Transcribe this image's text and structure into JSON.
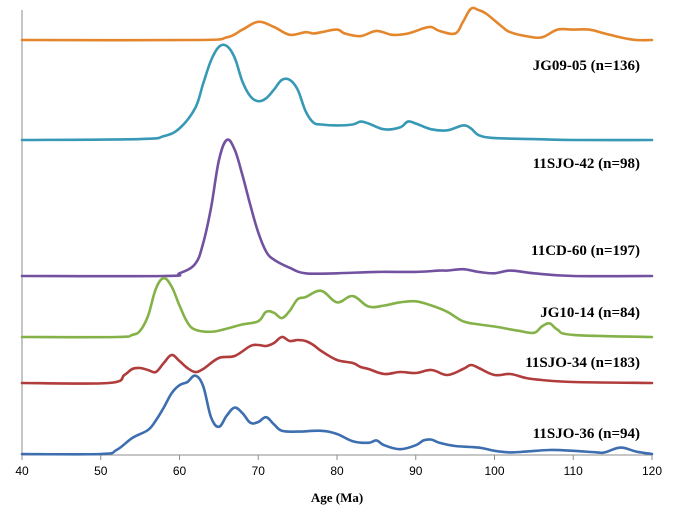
{
  "chart_data": {
    "type": "line",
    "title": "",
    "xlabel": "Age (Ma)",
    "ylabel": "",
    "xlim": [
      40,
      120
    ],
    "xticks": [
      40,
      50,
      60,
      70,
      80,
      90,
      100,
      110,
      120
    ],
    "grid": false,
    "legend": "none",
    "note": "Stacked probability density curves; each series offset vertically; y-axis unlabeled",
    "series": [
      {
        "name": "JG09-05 (n=136)",
        "color": "#E4862C",
        "baseline": 0,
        "x": [
          40,
          62,
          66,
          68,
          70,
          72,
          74,
          76,
          77,
          78,
          80,
          81,
          83,
          85,
          87,
          89,
          91,
          92,
          93,
          95,
          96,
          97,
          98,
          99,
          101,
          102,
          104,
          106,
          108,
          110,
          112,
          114,
          116,
          118,
          120
        ],
        "y": [
          0,
          0,
          0.02,
          0.08,
          0.14,
          0.1,
          0.04,
          0.06,
          0.05,
          0.06,
          0.08,
          0.05,
          0.03,
          0.07,
          0.04,
          0.05,
          0.09,
          0.1,
          0.07,
          0.05,
          0.14,
          0.24,
          0.23,
          0.2,
          0.1,
          0.06,
          0.03,
          0.02,
          0.08,
          0.08,
          0.08,
          0.05,
          0.02,
          0,
          0
        ]
      },
      {
        "name": "11SJO-42 (n=98)",
        "color": "#3799B5",
        "baseline": 0,
        "x": [
          40,
          55,
          58,
          60,
          62,
          63,
          64,
          65,
          66,
          67,
          68,
          69,
          70,
          71,
          72,
          73,
          74,
          75,
          76,
          77,
          78,
          80,
          82,
          83,
          84,
          86,
          88,
          89,
          90,
          92,
          94,
          96,
          97,
          98,
          100,
          105,
          110,
          120
        ],
        "y": [
          0,
          0.01,
          0.04,
          0.12,
          0.33,
          0.58,
          0.82,
          0.96,
          0.97,
          0.85,
          0.6,
          0.45,
          0.4,
          0.43,
          0.52,
          0.62,
          0.62,
          0.52,
          0.3,
          0.18,
          0.16,
          0.15,
          0.16,
          0.19,
          0.17,
          0.11,
          0.13,
          0.19,
          0.17,
          0.11,
          0.1,
          0.15,
          0.12,
          0.05,
          0.02,
          0.01,
          0,
          0
        ]
      },
      {
        "name": "11CD-60 (n=197)",
        "color": "#7252A0",
        "baseline": 0,
        "x": [
          40,
          58,
          60,
          62,
          63,
          64,
          65,
          66,
          67,
          68,
          69,
          70,
          71,
          72,
          74,
          76,
          80,
          85,
          90,
          93,
          94,
          96,
          98,
          100,
          102,
          105,
          110,
          120
        ],
        "y": [
          0,
          0,
          0.02,
          0.09,
          0.24,
          0.5,
          0.85,
          1.0,
          0.93,
          0.74,
          0.52,
          0.32,
          0.18,
          0.12,
          0.06,
          0.02,
          0.02,
          0.03,
          0.03,
          0.04,
          0.04,
          0.05,
          0.03,
          0.02,
          0.04,
          0.02,
          0,
          0
        ]
      },
      {
        "name": "JG10-14 (n=84)",
        "color": "#84B249",
        "baseline": 0,
        "x": [
          40,
          52,
          54,
          55,
          56,
          57,
          58,
          59,
          60,
          61,
          62,
          64,
          66,
          68,
          70,
          71,
          72,
          73,
          74,
          75,
          76,
          78,
          80,
          82,
          84,
          86,
          88,
          90,
          92,
          94,
          96,
          98,
          100,
          103,
          105,
          106,
          107,
          108,
          110,
          120
        ],
        "y": [
          0,
          0,
          0.02,
          0.06,
          0.2,
          0.46,
          0.56,
          0.48,
          0.3,
          0.14,
          0.07,
          0.05,
          0.08,
          0.12,
          0.15,
          0.24,
          0.23,
          0.18,
          0.25,
          0.36,
          0.38,
          0.44,
          0.33,
          0.39,
          0.29,
          0.3,
          0.33,
          0.34,
          0.3,
          0.24,
          0.15,
          0.12,
          0.1,
          0.06,
          0.04,
          0.1,
          0.13,
          0.07,
          0.02,
          0
        ]
      },
      {
        "name": "11SJO-34 (n=183)",
        "color": "#B03C3C",
        "baseline": 0,
        "x": [
          40,
          51,
          53,
          54,
          55,
          56,
          57,
          58,
          59,
          60,
          61,
          62,
          63,
          65,
          67,
          69,
          70,
          71,
          72,
          73,
          74,
          75,
          76,
          77,
          78,
          80,
          82,
          83,
          84,
          86,
          88,
          90,
          92,
          94,
          96,
          97,
          98,
          100,
          102,
          104,
          106,
          110,
          120
        ],
        "y": [
          0,
          0,
          0.08,
          0.14,
          0.15,
          0.13,
          0.11,
          0.2,
          0.28,
          0.22,
          0.15,
          0.11,
          0.14,
          0.25,
          0.27,
          0.37,
          0.38,
          0.37,
          0.4,
          0.46,
          0.42,
          0.43,
          0.42,
          0.38,
          0.32,
          0.23,
          0.2,
          0.16,
          0.14,
          0.09,
          0.11,
          0.1,
          0.13,
          0.08,
          0.14,
          0.18,
          0.15,
          0.08,
          0.09,
          0.05,
          0.03,
          0.01,
          0
        ]
      },
      {
        "name": "11SJO-36 (n=94)",
        "color": "#3D6FB0",
        "baseline": 0,
        "x": [
          40,
          50,
          52,
          54,
          56,
          57,
          58,
          59,
          60,
          61,
          62,
          63,
          64,
          65,
          66,
          67,
          68,
          69,
          70,
          71,
          72,
          73,
          75,
          78,
          80,
          82,
          84,
          85,
          86,
          88,
          90,
          91,
          92,
          93,
          95,
          98,
          100,
          102,
          104,
          107,
          110,
          113,
          114,
          116,
          118,
          120
        ],
        "y": [
          0,
          0,
          0.05,
          0.2,
          0.3,
          0.42,
          0.58,
          0.76,
          0.86,
          0.9,
          0.98,
          0.85,
          0.46,
          0.34,
          0.48,
          0.58,
          0.51,
          0.39,
          0.4,
          0.46,
          0.37,
          0.29,
          0.28,
          0.29,
          0.25,
          0.16,
          0.14,
          0.17,
          0.11,
          0.06,
          0.11,
          0.17,
          0.18,
          0.14,
          0.1,
          0.08,
          0.04,
          0.02,
          0.03,
          0.05,
          0.04,
          0.02,
          0.02,
          0.08,
          0.03,
          0
        ]
      }
    ]
  }
}
